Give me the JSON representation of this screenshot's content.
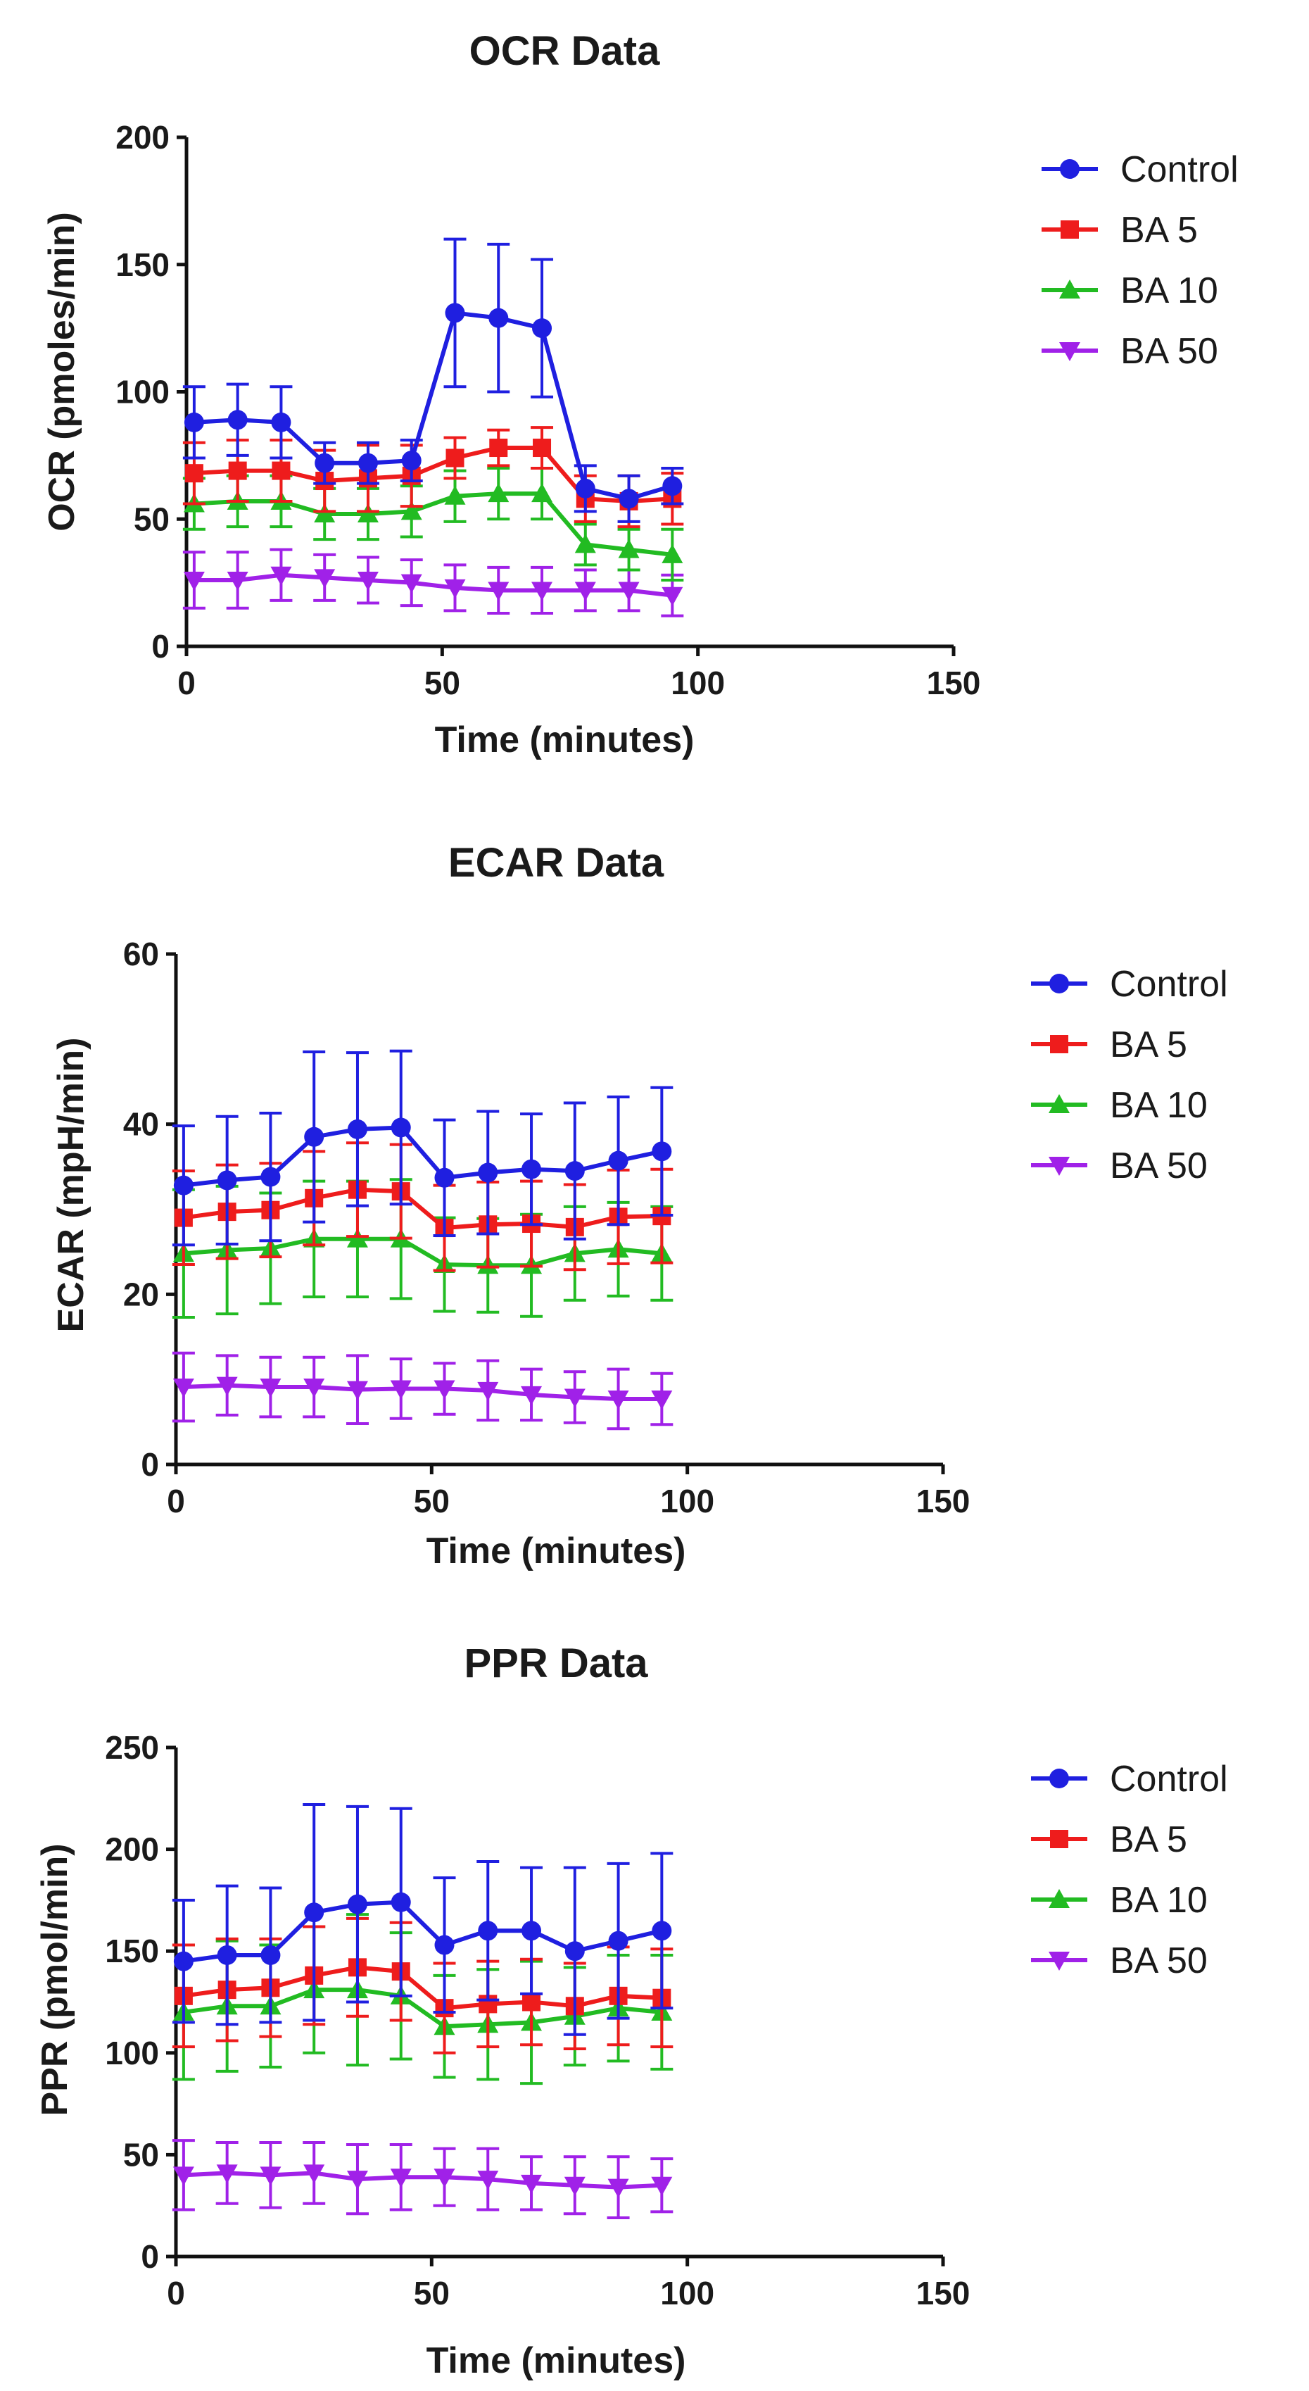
{
  "colors": {
    "Control": "#1f1fe0",
    "BA 5": "#ee1c1c",
    "BA 10": "#22bb22",
    "BA 50": "#a021e8",
    "axis": "#111111"
  },
  "chart_data": [
    {
      "type": "line",
      "title": "OCR Data",
      "xlabel": "Time (minutes)",
      "ylabel": "OCR (pmoles/min)",
      "xlim": [
        0,
        150
      ],
      "ylim": [
        0,
        200
      ],
      "xticks": [
        0,
        50,
        100,
        150
      ],
      "yticks": [
        0,
        50,
        100,
        150,
        200
      ],
      "x": [
        1.5,
        10,
        18.5,
        27,
        35.5,
        44,
        52.5,
        61,
        69.5,
        78,
        86.5,
        95
      ],
      "legend": [
        "Control",
        "BA 5",
        "BA 10",
        "BA 50"
      ],
      "series": [
        {
          "name": "Control",
          "marker": "circle",
          "values": [
            88,
            89,
            88,
            72,
            72,
            73,
            131,
            129,
            125,
            62,
            58,
            63
          ],
          "errors": [
            14,
            14,
            14,
            8,
            8,
            8,
            29,
            29,
            27,
            9,
            9,
            7
          ]
        },
        {
          "name": "BA 5",
          "marker": "square",
          "values": [
            68,
            69,
            69,
            65,
            66,
            67,
            74,
            78,
            78,
            58,
            57,
            58
          ],
          "errors": [
            12,
            12,
            12,
            12,
            13,
            12,
            8,
            7,
            8,
            9,
            10,
            10
          ]
        },
        {
          "name": "BA 10",
          "marker": "triangle-up",
          "values": [
            56,
            57,
            57,
            52,
            52,
            53,
            59,
            60,
            60,
            40,
            38,
            36
          ],
          "errors": [
            10,
            10,
            10,
            10,
            10,
            10,
            10,
            10,
            10,
            8,
            8,
            10
          ]
        },
        {
          "name": "BA 50",
          "marker": "triangle-down",
          "values": [
            26,
            26,
            28,
            27,
            26,
            25,
            23,
            22,
            22,
            22,
            22,
            20
          ],
          "errors": [
            11,
            11,
            10,
            9,
            9,
            9,
            9,
            9,
            9,
            8,
            8,
            8
          ]
        }
      ]
    },
    {
      "type": "line",
      "title": "ECAR Data",
      "xlabel": "Time (minutes)",
      "ylabel": "ECAR (mpH/min)",
      "xlim": [
        0,
        150
      ],
      "ylim": [
        0,
        60
      ],
      "xticks": [
        0,
        50,
        100,
        150
      ],
      "yticks": [
        0,
        20,
        40,
        60
      ],
      "x": [
        1.5,
        10,
        18.5,
        27,
        35.5,
        44,
        52.5,
        61,
        69.5,
        78,
        86.5,
        95
      ],
      "legend": [
        "Control",
        "BA 5",
        "BA 10",
        "BA 50"
      ],
      "series": [
        {
          "name": "Control",
          "marker": "circle",
          "values": [
            32.8,
            33.4,
            33.8,
            38.5,
            39.4,
            39.6,
            33.7,
            34.3,
            34.7,
            34.5,
            35.7,
            36.8
          ],
          "errors": [
            7,
            7.5,
            7.5,
            10,
            9,
            9,
            6.8,
            7.2,
            6.5,
            8,
            7.5,
            7.5
          ]
        },
        {
          "name": "BA 5",
          "marker": "square",
          "values": [
            29,
            29.7,
            29.9,
            31.3,
            32.3,
            32.1,
            27.8,
            28.2,
            28.3,
            27.9,
            29.1,
            29.2
          ],
          "errors": [
            5.5,
            5.5,
            5.5,
            5.5,
            5.5,
            5.5,
            5,
            5,
            5,
            5,
            5.5,
            5.5
          ]
        },
        {
          "name": "BA 10",
          "marker": "triangle-up",
          "values": [
            24.8,
            25.2,
            25.4,
            26.5,
            26.5,
            26.5,
            23.5,
            23.4,
            23.4,
            24.8,
            25.3,
            24.8
          ],
          "errors": [
            7.5,
            7.5,
            6.5,
            6.8,
            6.8,
            7,
            5.5,
            5.5,
            6,
            5.5,
            5.5,
            5.5
          ]
        },
        {
          "name": "BA 50",
          "marker": "triangle-down",
          "values": [
            9.1,
            9.3,
            9.1,
            9.1,
            8.8,
            8.9,
            8.9,
            8.7,
            8.2,
            7.9,
            7.7,
            7.7
          ],
          "errors": [
            4,
            3.5,
            3.5,
            3.5,
            4,
            3.5,
            3,
            3.5,
            3,
            3,
            3.5,
            3
          ]
        }
      ]
    },
    {
      "type": "line",
      "title": "PPR Data",
      "xlabel": "Time (minutes)",
      "ylabel": "PPR (pmol/min)",
      "xlim": [
        0,
        150
      ],
      "ylim": [
        0,
        250
      ],
      "xticks": [
        0,
        50,
        100,
        150
      ],
      "yticks": [
        0,
        50,
        100,
        150,
        200,
        250
      ],
      "x": [
        1.5,
        10,
        18.5,
        27,
        35.5,
        44,
        52.5,
        61,
        69.5,
        78,
        86.5,
        95
      ],
      "legend": [
        "Control",
        "BA 5",
        "BA 10",
        "BA 50"
      ],
      "series": [
        {
          "name": "Control",
          "marker": "circle",
          "values": [
            145,
            148,
            148,
            169,
            173,
            174,
            153,
            160,
            160,
            150,
            155,
            160
          ],
          "errors": [
            30,
            34,
            33,
            53,
            48,
            46,
            33,
            34,
            31,
            41,
            38,
            38
          ]
        },
        {
          "name": "BA 5",
          "marker": "square",
          "values": [
            128,
            131,
            132,
            138,
            142,
            140,
            122,
            124,
            125,
            123,
            128,
            127
          ],
          "errors": [
            25,
            25,
            24,
            24,
            24,
            24,
            22,
            21,
            21,
            21,
            24,
            24
          ]
        },
        {
          "name": "BA 10",
          "marker": "triangle-up",
          "values": [
            120,
            123,
            123,
            131,
            131,
            128,
            113,
            114,
            115,
            118,
            122,
            120
          ],
          "errors": [
            33,
            32,
            30,
            31,
            37,
            31,
            25,
            27,
            30,
            24,
            26,
            28
          ]
        },
        {
          "name": "BA 50",
          "marker": "triangle-down",
          "values": [
            40,
            41,
            40,
            41,
            38,
            39,
            39,
            38,
            36,
            35,
            34,
            35
          ],
          "errors": [
            17,
            15,
            16,
            15,
            17,
            16,
            14,
            15,
            13,
            14,
            15,
            13
          ]
        }
      ]
    }
  ]
}
